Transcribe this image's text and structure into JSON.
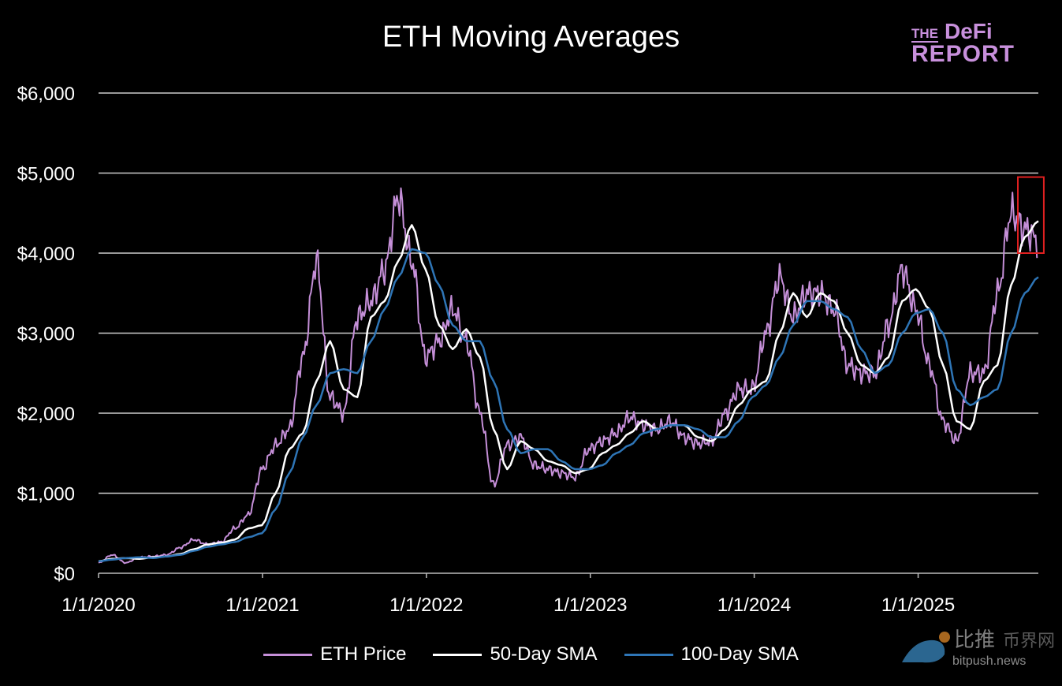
{
  "chart_data": {
    "type": "line",
    "title": "ETH Moving Averages",
    "xlabel": "",
    "ylabel": "",
    "ylim": [
      0,
      6000
    ],
    "yticks": [
      "$0",
      "$1,000",
      "$2,000",
      "$3,000",
      "$4,000",
      "$5,000",
      "$6,000"
    ],
    "ytick_values": [
      0,
      1000,
      2000,
      3000,
      4000,
      5000,
      6000
    ],
    "xticks": [
      "1/1/2020",
      "1/1/2021",
      "1/1/2022",
      "1/1/2023",
      "1/1/2024",
      "1/1/2025"
    ],
    "x_unit": "months since 1/1/2020",
    "xlim": [
      0,
      68.8
    ],
    "grid": "horizontal",
    "legend_position": "bottom",
    "highlight_box": {
      "x_range": [
        67.3,
        69.2
      ],
      "y_range": [
        4000,
        4950
      ],
      "color": "#e02020"
    },
    "series": [
      {
        "name": "ETH Price",
        "color": "#c58fd8",
        "values": [
          130,
          230,
          130,
          200,
          210,
          230,
          320,
          420,
          360,
          390,
          560,
          730,
          1300,
          1600,
          1800,
          2700,
          3900,
          2200,
          2000,
          3200,
          3400,
          3800,
          4700,
          3900,
          2700,
          2900,
          3300,
          2900,
          2000,
          1100,
          1600,
          1700,
          1350,
          1300,
          1250,
          1200,
          1550,
          1650,
          1750,
          1950,
          1850,
          1800,
          1900,
          1700,
          1620,
          1650,
          2000,
          2300,
          2300,
          3000,
          3700,
          3200,
          3500,
          3500,
          3300,
          2600,
          2500,
          2500,
          3100,
          3800,
          3300,
          2600,
          1900,
          1650,
          2500,
          2500,
          3500,
          4500,
          4300,
          4150
        ]
      },
      {
        "name": "50-Day SMA",
        "color": "#ffffff",
        "values": [
          150,
          180,
          190,
          180,
          200,
          210,
          240,
          300,
          360,
          380,
          420,
          560,
          600,
          1000,
          1550,
          1750,
          2400,
          2900,
          2300,
          2200,
          3200,
          3400,
          3900,
          4350,
          3800,
          3100,
          2800,
          3050,
          2700,
          1800,
          1300,
          1650,
          1550,
          1400,
          1350,
          1250,
          1300,
          1500,
          1600,
          1750,
          1900,
          1800,
          1850,
          1850,
          1700,
          1650,
          1800,
          2100,
          2300,
          2400,
          3000,
          3500,
          3200,
          3500,
          3400,
          3000,
          2600,
          2500,
          2700,
          3400,
          3550,
          3300,
          2600,
          1900,
          1800,
          2400,
          2600,
          3600,
          4200,
          4400
        ]
      },
      {
        "name": "100-Day SMA",
        "color": "#2e75b6",
        "values": [
          150,
          170,
          190,
          200,
          190,
          210,
          230,
          280,
          330,
          360,
          390,
          450,
          500,
          800,
          1250,
          1700,
          2100,
          2500,
          2550,
          2500,
          2900,
          3300,
          3700,
          4050,
          4000,
          3600,
          3100,
          2900,
          2900,
          2400,
          1800,
          1500,
          1550,
          1550,
          1400,
          1300,
          1300,
          1350,
          1500,
          1600,
          1750,
          1800,
          1850,
          1850,
          1800,
          1700,
          1700,
          1900,
          2200,
          2350,
          2700,
          3100,
          3400,
          3400,
          3300,
          3200,
          2800,
          2500,
          2600,
          3000,
          3250,
          3300,
          3000,
          2300,
          2100,
          2200,
          2300,
          3000,
          3500,
          3700
        ]
      }
    ]
  },
  "logo": {
    "line1a": "THE",
    "line1b": "DeFi",
    "line2": "REPORT"
  },
  "watermark": {
    "cn": "比推",
    "cn2": "币界网",
    "url": "bitpush.news"
  }
}
